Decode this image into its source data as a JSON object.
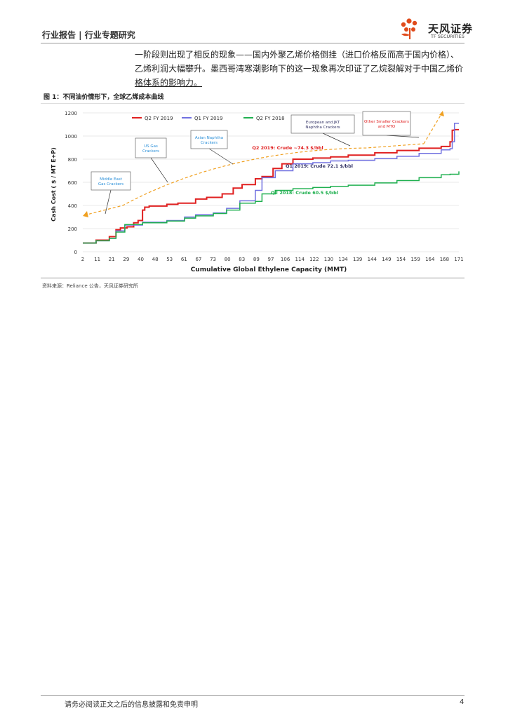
{
  "header": {
    "title": "行业报告 | 行业专题研究",
    "logo_cn": "天风证券",
    "logo_en": "TF SECURITIES"
  },
  "body": {
    "line1": "一阶段则出现了相反的现象——国内外聚乙烯价格倒挂（进口价格反而高于国内价格）、",
    "line2": "乙烯利润大幅攀升。墨西哥湾寒潮影响下的这一现象再次印证了乙烷裂解对于中国乙烯价",
    "line3": "格体系的影响力。"
  },
  "figure": {
    "title": "图 1：不同油价情形下，全球乙烯成本曲线",
    "source": "资料来源：Reliance 公告，天风证券研究所"
  },
  "footer": {
    "disclaimer": "请务必阅读正文之后的信息披露和免责申明",
    "page": "4"
  },
  "chart_data": {
    "type": "line",
    "xlabel": "Cumulative Global Ethylene Capacity (MMT)",
    "ylabel": "Cash Cost ( $ / MT E+P)",
    "xlim": [
      2,
      172
    ],
    "ylim": [
      0,
      1200
    ],
    "yticks": [
      0,
      200,
      400,
      600,
      800,
      1000,
      1200
    ],
    "xtick_labels": [
      "2",
      "11",
      "21",
      "29",
      "40",
      "48",
      "53",
      "61",
      "67",
      "73",
      "80",
      "83",
      "89",
      "97",
      "106",
      "114",
      "122",
      "130",
      "134",
      "139",
      "144",
      "149",
      "154",
      "159",
      "164",
      "168",
      "171"
    ],
    "colors": {
      "q2_2019": "#e02020",
      "q1_2019": "#7070e0",
      "q2_2018": "#20b050",
      "arrow": "#f0a020",
      "callout_blue": "#2a8fd8",
      "callout_red": "#e02020",
      "callout_dark": "#333366"
    },
    "series": [
      {
        "name": "Q2 FY 2019",
        "annotation": "Q2 2019: Crude ~74.3 $/bbl",
        "x": [
          2,
          8,
          14,
          17,
          19,
          22,
          25,
          27,
          29,
          30,
          32,
          40,
          45,
          53,
          58,
          65,
          70,
          74,
          80,
          83,
          88,
          92,
          97,
          106,
          114,
          122,
          134,
          144,
          154,
          164,
          168,
          169,
          170,
          172
        ],
        "y": [
          75,
          100,
          130,
          190,
          205,
          215,
          250,
          270,
          360,
          385,
          395,
          410,
          420,
          455,
          470,
          500,
          550,
          580,
          630,
          650,
          720,
          760,
          800,
          810,
          820,
          835,
          855,
          875,
          895,
          910,
          950,
          1050,
          1055,
          1055
        ]
      },
      {
        "name": "Q1 FY 2019",
        "annotation": "Q1 2019: Crude 72.1 $/bbl",
        "x": [
          2,
          8,
          14,
          17,
          21,
          29,
          40,
          48,
          53,
          61,
          67,
          73,
          80,
          83,
          89,
          97,
          106,
          114,
          122,
          134,
          144,
          154,
          164,
          168,
          169,
          170,
          172
        ],
        "y": [
          75,
          95,
          115,
          180,
          230,
          255,
          270,
          300,
          320,
          335,
          375,
          440,
          530,
          640,
          700,
          760,
          770,
          785,
          790,
          805,
          825,
          850,
          880,
          890,
          950,
          1110,
          1110
        ]
      },
      {
        "name": "Q2 FY 2018",
        "annotation": "Q2 2018: Crude 60.5 $/bbl",
        "x": [
          2,
          8,
          14,
          17,
          21,
          29,
          40,
          48,
          53,
          61,
          67,
          73,
          80,
          83,
          89,
          97,
          106,
          114,
          122,
          134,
          144,
          154,
          164,
          168,
          170,
          172
        ],
        "y": [
          75,
          95,
          115,
          170,
          235,
          250,
          265,
          290,
          310,
          330,
          360,
          420,
          435,
          500,
          530,
          545,
          555,
          565,
          575,
          595,
          615,
          640,
          665,
          670,
          670,
          695
        ]
      }
    ],
    "callouts": [
      {
        "label": "Middle East Gas Crackers"
      },
      {
        "label": "US Gas Crackers"
      },
      {
        "label": "Asian Naphtha Crackers"
      },
      {
        "label": "European and JKT Naphtha Crackers"
      },
      {
        "label": "Other Smaller Crackers and MTO"
      }
    ]
  }
}
